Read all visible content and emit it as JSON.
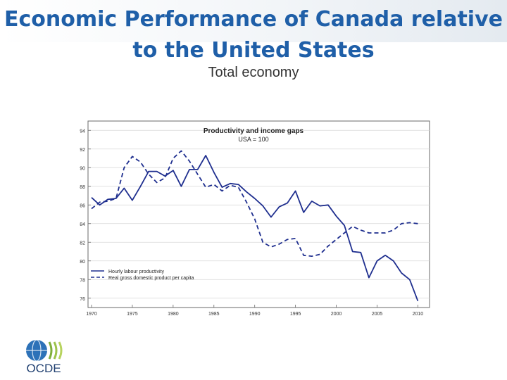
{
  "slide": {
    "title_line1": "Economic Performance of Canada relative",
    "title_line2": "to the United States",
    "subtitle": "Total economy"
  },
  "logo": {
    "text": "OCDE"
  },
  "colors": {
    "title": "#1f5fa8",
    "series": "#1f2f8f"
  },
  "chart_data": {
    "type": "line",
    "title": "Productivity and income gaps",
    "subtitle": "USA = 100",
    "xlabel": "",
    "ylabel": "",
    "xlim": [
      1970,
      2011
    ],
    "ylim": [
      75,
      95
    ],
    "y_tick_labels": [
      "76",
      "78",
      "80",
      "82",
      "84",
      "86",
      "88",
      "90",
      "92",
      "94"
    ],
    "y_tick_values": [
      76,
      78,
      80,
      82,
      84,
      86,
      88,
      90,
      92,
      94
    ],
    "x_tick_labels": [
      "1970",
      "1975",
      "1980",
      "1985",
      "1990",
      "1995",
      "2000",
      "2005",
      "2010"
    ],
    "x_tick_values": [
      1970,
      1975,
      1980,
      1985,
      1990,
      1995,
      2000,
      2005,
      2010
    ],
    "legend_position": "bottom-left",
    "series": [
      {
        "name": "Hourly labour productivity",
        "style": "solid",
        "x": [
          1970,
          1971,
          1972,
          1973,
          1974,
          1975,
          1976,
          1977,
          1978,
          1979,
          1980,
          1981,
          1982,
          1983,
          1984,
          1985,
          1986,
          1987,
          1988,
          1989,
          1990,
          1991,
          1992,
          1993,
          1994,
          1995,
          1996,
          1997,
          1998,
          1999,
          2000,
          2001,
          2002,
          2003,
          2004,
          2005,
          2006,
          2007,
          2008,
          2009,
          2010
        ],
        "values": [
          86.8,
          86.0,
          86.6,
          86.7,
          87.8,
          86.5,
          88.0,
          89.6,
          89.6,
          89.1,
          89.7,
          88.0,
          89.8,
          89.8,
          91.3,
          89.5,
          87.9,
          88.3,
          88.2,
          87.4,
          86.7,
          85.9,
          84.7,
          85.8,
          86.2,
          87.5,
          85.2,
          86.4,
          85.9,
          86.0,
          84.8,
          83.8,
          81.0,
          80.9,
          78.2,
          80.0,
          80.6,
          80.0,
          78.7,
          78.0,
          75.7
        ]
      },
      {
        "name": "Real gross domestic product per capita",
        "style": "dashed",
        "x": [
          1970,
          1971,
          1972,
          1973,
          1974,
          1975,
          1976,
          1977,
          1978,
          1979,
          1980,
          1981,
          1982,
          1983,
          1984,
          1985,
          1986,
          1987,
          1988,
          1989,
          1990,
          1991,
          1992,
          1993,
          1994,
          1995,
          1996,
          1997,
          1998,
          1999,
          2000,
          2001,
          2002,
          2003,
          2004,
          2005,
          2006,
          2007,
          2008,
          2009,
          2010
        ],
        "values": [
          85.6,
          86.3,
          86.4,
          86.7,
          90.0,
          91.2,
          90.6,
          89.3,
          88.4,
          88.9,
          91.0,
          91.8,
          90.7,
          89.3,
          87.9,
          88.2,
          87.5,
          88.1,
          87.9,
          86.3,
          84.5,
          82.0,
          81.5,
          81.8,
          82.3,
          82.4,
          80.6,
          80.5,
          80.7,
          81.6,
          82.3,
          83.0,
          83.7,
          83.3,
          83.0,
          83.0,
          83.0,
          83.3,
          84.0,
          84.1,
          84.0
        ]
      }
    ]
  }
}
